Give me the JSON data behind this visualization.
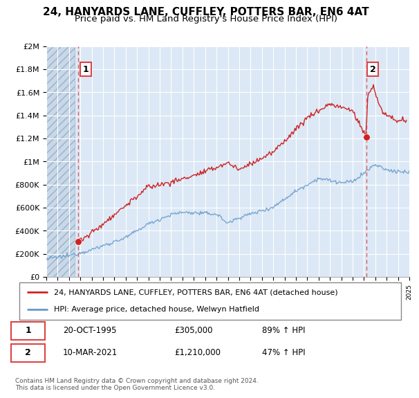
{
  "title": "24, HANYARDS LANE, CUFFLEY, POTTERS BAR, EN6 4AT",
  "subtitle": "Price paid vs. HM Land Registry's House Price Index (HPI)",
  "ylabel_ticks": [
    "£0",
    "£200K",
    "£400K",
    "£600K",
    "£800K",
    "£1M",
    "£1.2M",
    "£1.4M",
    "£1.6M",
    "£1.8M",
    "£2M"
  ],
  "ytick_values": [
    0,
    200000,
    400000,
    600000,
    800000,
    1000000,
    1200000,
    1400000,
    1600000,
    1800000,
    2000000
  ],
  "sale1": {
    "year": 1995.8,
    "price": 305000,
    "label": "1"
  },
  "sale2": {
    "year": 2021.2,
    "price": 1210000,
    "label": "2"
  },
  "legend_line1": "24, HANYARDS LANE, CUFFLEY, POTTERS BAR, EN6 4AT (detached house)",
  "legend_line2": "HPI: Average price, detached house, Welwyn Hatfield",
  "footer": "Contains HM Land Registry data © Crown copyright and database right 2024.\nThis data is licensed under the Open Government Licence v3.0.",
  "hpi_color": "#6699cc",
  "price_color": "#cc2222",
  "dashed_color": "#dd4444",
  "grid_color": "#b8cce4",
  "bg_color": "#dce8f5",
  "xlim": [
    1993,
    2025
  ],
  "ylim": [
    0,
    2000000
  ],
  "title_fontsize": 11,
  "subtitle_fontsize": 9.5
}
